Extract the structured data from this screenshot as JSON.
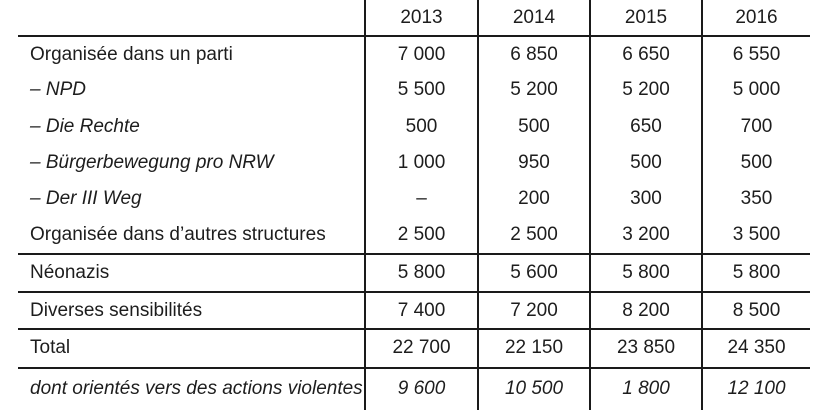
{
  "table": {
    "columns": [
      "",
      "2013",
      "2014",
      "2015",
      "2016"
    ],
    "rows": [
      {
        "label": "Organisée dans un parti",
        "values": [
          "7 000",
          "6 850",
          "6 650",
          "6 550"
        ]
      },
      {
        "label": "– NPD",
        "values": [
          "5 500",
          "5 200",
          "5 200",
          "5 000"
        ]
      },
      {
        "label": "– Die Rechte",
        "values": [
          "500",
          "500",
          "650",
          "700"
        ]
      },
      {
        "label": "– Bürgerbewegung pro NRW",
        "values": [
          "1 000",
          "950",
          "500",
          "500"
        ]
      },
      {
        "label": "– Der III Weg",
        "values": [
          "–",
          "200",
          "300",
          "350"
        ]
      },
      {
        "label": "Organisée dans d’autres structures",
        "values": [
          "2 500",
          "2 500",
          "3 200",
          "3 500"
        ]
      },
      {
        "label": "Néonazis",
        "values": [
          "5 800",
          "5 600",
          "5 800",
          "5 800"
        ]
      },
      {
        "label": "Diverses sensibilités",
        "values": [
          "7 400",
          "7 200",
          "8 200",
          "8 500"
        ]
      },
      {
        "label": "Total",
        "values": [
          "22 700",
          "22 150",
          "23 850",
          "24 350"
        ]
      },
      {
        "label": "dont orientés vers des actions violentes",
        "values": [
          "9 600",
          "10 500",
          "1 800",
          "12 100"
        ]
      }
    ]
  },
  "colors": {
    "background": "#ffffff",
    "line": "#1a1a1a",
    "text": "#1d1d1d"
  }
}
